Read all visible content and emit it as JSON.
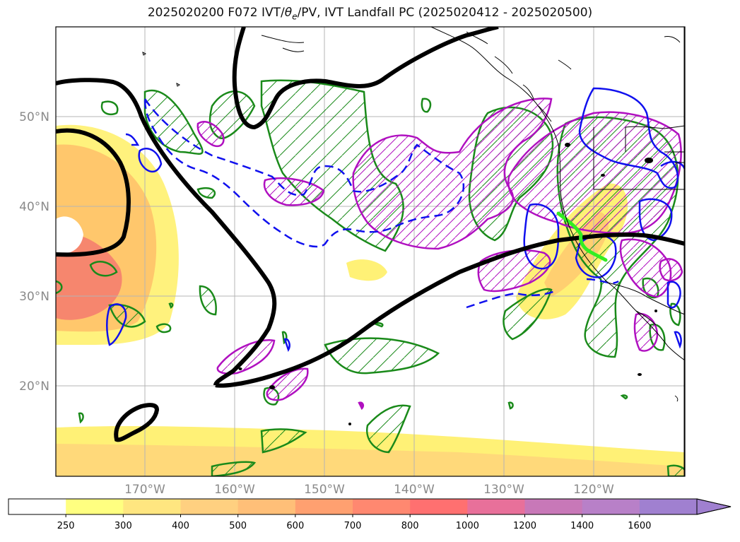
{
  "title": {
    "prefix": "2025020200 F072 IVT/",
    "theta": "θ",
    "theta_sub": "e",
    "suffix": "/PV, IVT Landfall PC (2025020412 - 2025020500)"
  },
  "map": {
    "lat_labels": [
      "50°N",
      "40°N",
      "30°N",
      "20°N"
    ],
    "lon_labels": [
      "170°W",
      "160°W",
      "150°W",
      "140°W",
      "130°W",
      "120°W"
    ]
  },
  "colorbar": {
    "ticks": [
      "250",
      "300",
      "400",
      "500",
      "600",
      "700",
      "800",
      "1000",
      "1200",
      "1400",
      "1600"
    ],
    "colors": [
      "#ffffff",
      "#ffff80",
      "#ffe680",
      "#ffd080",
      "#ffbf78",
      "#ffa070",
      "#ff8870",
      "#ff7070",
      "#e8709a",
      "#c878b8",
      "#b880c8",
      "#a080d0"
    ]
  },
  "colors": {
    "ivt_fill_low": "#fff176",
    "ivt_fill_mid": "#ffc46b",
    "ivt_fill_high": "#f47a6e",
    "contour_thick": "#000000",
    "contour_green": "#1a8a1a",
    "contour_blue": "#1010ee",
    "contour_magenta": "#b010c0",
    "landfall_line": "#33ee22"
  }
}
